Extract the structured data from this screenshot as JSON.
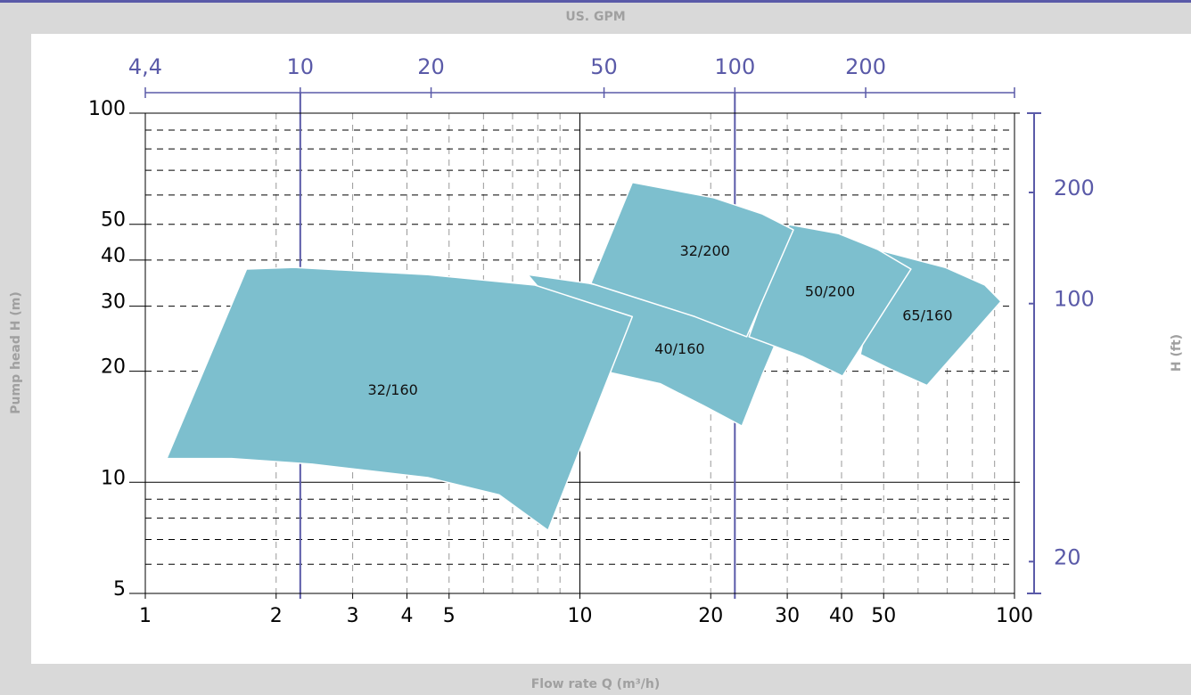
{
  "chart_data": {
    "type": "region",
    "x2label": "US. GPM",
    "xlabel": "Flow rate Q (m³/h)",
    "ylabel": "Pump head H (m)",
    "y2label": "H (ft)",
    "log": true,
    "grid": true,
    "xlim": [
      1,
      100
    ],
    "ylim": [
      5,
      100
    ],
    "xticks": [
      1,
      2,
      3,
      4,
      5,
      10,
      20,
      30,
      40,
      50,
      100
    ],
    "xminor": [
      6,
      7,
      8,
      9,
      60,
      70,
      80,
      90
    ],
    "yticks": [
      5,
      10,
      20,
      30,
      40,
      50,
      100
    ],
    "yminor": [
      6,
      7,
      8,
      9,
      60,
      70,
      80,
      90
    ],
    "x2lim": [
      4.4,
      440
    ],
    "x2ticks": [
      {
        "value": 4.4,
        "label": "4,4"
      },
      10,
      20,
      50,
      100,
      200
    ],
    "y2lim": [
      16.4,
      328
    ],
    "y2ticks": [
      20,
      100,
      200
    ],
    "axis_color": "#5a5aa8",
    "regions": [
      {
        "name": "40/160",
        "color": "#7dbfce",
        "x": [
          7.59,
          10.5,
          16.8,
          24.2,
          28.2,
          26.3,
          23.6,
          19.3,
          15.3,
          11.8
        ],
        "y": [
          36.5,
          34.6,
          30.6,
          25.9,
          23.8,
          19.6,
          14.2,
          16.1,
          18.5,
          19.8
        ]
      },
      {
        "name": "32/160",
        "color": "#7dbfce",
        "x": [
          1.12,
          1.71,
          2.2,
          4.47,
          7.88,
          13.2,
          8.45,
          6.52,
          4.47,
          2.42,
          1.58
        ],
        "y": [
          11.6,
          37.8,
          38.2,
          36.5,
          34.2,
          28.1,
          7.41,
          9.25,
          10.3,
          11.2,
          11.6
        ]
      },
      {
        "name": "65/160",
        "color": "#7dbfce",
        "x": [
          49.7,
          69.2,
          85.5,
          93.1,
          62.9,
          52.1,
          44.2
        ],
        "y": [
          42.3,
          38.2,
          34.2,
          30.9,
          18.3,
          20.2,
          22.2
        ]
      },
      {
        "name": "50/200",
        "color": "#7dbfce",
        "x": [
          30.3,
          39.3,
          48.5,
          57.8,
          40.2,
          32.5,
          24.5
        ],
        "y": [
          49.9,
          47.2,
          42.7,
          37.8,
          19.4,
          21.9,
          24.8
        ]
      },
      {
        "name": "32/200",
        "color": "#7dbfce",
        "x": [
          13.2,
          20.3,
          26.3,
          31.0,
          24.2,
          18.4,
          10.6
        ],
        "y": [
          64.9,
          59.0,
          53.3,
          48.3,
          24.8,
          28.1,
          34.6
        ]
      }
    ]
  }
}
